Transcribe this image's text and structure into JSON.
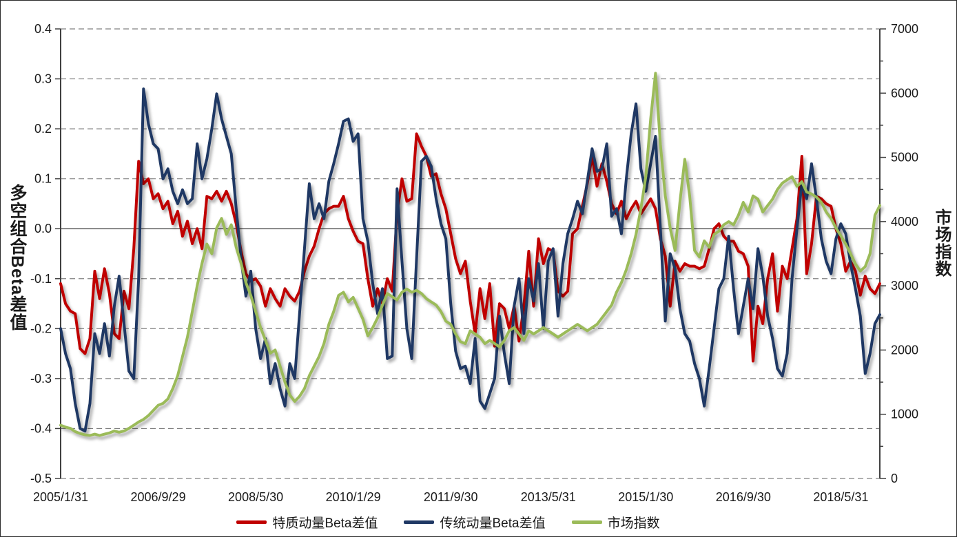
{
  "chart_data": {
    "type": "line",
    "title": "",
    "n_points": 169,
    "x_start": "2005/1",
    "x_tick_interval_months": 20,
    "x_tick_labels": [
      "2005/1/31",
      "2006/9/29",
      "2008/5/30",
      "2010/1/29",
      "2011/9/30",
      "2013/5/31",
      "2015/1/30",
      "2016/9/30",
      "2018/5/31"
    ],
    "left_axis": {
      "title": "多空组合Beta差值",
      "min": -0.5,
      "max": 0.4,
      "step": 0.1,
      "tick_labels": [
        "0.4",
        "0.3",
        "0.2",
        "0.1",
        "0.0",
        "-0.1",
        "-0.2",
        "-0.3",
        "-0.4",
        "-0.5"
      ]
    },
    "right_axis": {
      "title": "市场指数",
      "min": 0,
      "max": 7000,
      "step": 1000,
      "minor_tick_step": 500,
      "tick_labels": [
        "7000",
        "6000",
        "5000",
        "4000",
        "3000",
        "2000",
        "1000",
        "0"
      ]
    },
    "grid": {
      "horizontal": "dashed",
      "zero_line": "solid"
    },
    "legend_position": "bottom-center",
    "series": [
      {
        "name": "特质动量Beta差值",
        "color": "#C00000",
        "axis": "left",
        "values": [
          -0.11,
          -0.15,
          -0.165,
          -0.17,
          -0.24,
          -0.25,
          -0.22,
          -0.085,
          -0.14,
          -0.08,
          -0.13,
          -0.21,
          -0.22,
          -0.125,
          -0.16,
          -0.04,
          0.135,
          0.09,
          0.1,
          0.06,
          0.07,
          0.04,
          0.055,
          0.01,
          0.035,
          -0.015,
          0.015,
          -0.03,
          0.0,
          -0.04,
          0.065,
          0.06,
          0.075,
          0.055,
          0.075,
          0.05,
          0.01,
          -0.045,
          -0.09,
          -0.105,
          -0.1,
          -0.115,
          -0.155,
          -0.12,
          -0.14,
          -0.155,
          -0.12,
          -0.135,
          -0.145,
          -0.125,
          -0.085,
          -0.055,
          -0.035,
          0.0,
          0.03,
          0.04,
          0.045,
          0.045,
          0.065,
          0.02,
          -0.005,
          -0.025,
          -0.03,
          -0.1,
          -0.155,
          -0.12,
          -0.15,
          -0.1,
          -0.125,
          0.03,
          0.1,
          0.055,
          0.06,
          0.19,
          0.165,
          0.145,
          0.105,
          0.11,
          0.07,
          0.04,
          -0.01,
          -0.06,
          -0.09,
          -0.065,
          -0.145,
          -0.21,
          -0.12,
          -0.18,
          -0.11,
          -0.235,
          -0.15,
          -0.16,
          -0.2,
          -0.155,
          -0.225,
          -0.155,
          -0.045,
          -0.155,
          -0.02,
          -0.07,
          -0.04,
          -0.045,
          -0.125,
          -0.135,
          -0.125,
          -0.01,
          0.0,
          0.045,
          0.09,
          0.145,
          0.085,
          0.13,
          0.095,
          0.05,
          0.03,
          0.055,
          0.02,
          0.04,
          0.055,
          0.03,
          0.045,
          0.06,
          0.04,
          -0.02,
          -0.055,
          -0.155,
          -0.065,
          -0.085,
          -0.07,
          -0.075,
          -0.075,
          -0.08,
          -0.075,
          -0.04,
          0.0,
          0.01,
          -0.015,
          -0.025,
          -0.025,
          -0.045,
          -0.05,
          -0.075,
          -0.265,
          -0.155,
          -0.19,
          -0.1,
          -0.05,
          -0.165,
          -0.075,
          -0.1,
          -0.04,
          0.02,
          0.145,
          -0.09,
          -0.03,
          0.065,
          0.06,
          0.05,
          0.045,
          0.0,
          -0.03,
          -0.085,
          -0.065,
          -0.085,
          -0.133,
          -0.095,
          -0.12,
          -0.13,
          -0.11
        ]
      },
      {
        "name": "传统动量Beta差值",
        "color": "#1F3864",
        "axis": "left",
        "values": [
          -0.2,
          -0.25,
          -0.28,
          -0.35,
          -0.4,
          -0.405,
          -0.35,
          -0.21,
          -0.25,
          -0.19,
          -0.255,
          -0.155,
          -0.095,
          -0.19,
          -0.285,
          -0.3,
          -0.1,
          0.28,
          0.21,
          0.17,
          0.16,
          0.1,
          0.12,
          0.075,
          0.05,
          0.078,
          0.05,
          0.06,
          0.17,
          0.1,
          0.14,
          0.2,
          0.27,
          0.22,
          0.185,
          0.15,
          0.04,
          -0.06,
          -0.135,
          -0.085,
          -0.2,
          -0.26,
          -0.22,
          -0.31,
          -0.27,
          -0.32,
          -0.355,
          -0.27,
          -0.3,
          -0.17,
          -0.04,
          0.09,
          0.02,
          0.05,
          0.02,
          0.095,
          0.13,
          0.17,
          0.215,
          0.22,
          0.175,
          0.19,
          0.02,
          -0.025,
          -0.11,
          -0.17,
          -0.12,
          -0.26,
          -0.255,
          0.08,
          -0.065,
          -0.2,
          -0.26,
          -0.06,
          0.135,
          0.145,
          0.125,
          0.06,
          0.01,
          -0.02,
          -0.15,
          -0.245,
          -0.28,
          -0.275,
          -0.31,
          -0.22,
          -0.345,
          -0.36,
          -0.33,
          -0.3,
          -0.175,
          -0.25,
          -0.31,
          -0.155,
          -0.1,
          -0.21,
          -0.1,
          -0.145,
          -0.07,
          -0.2,
          -0.065,
          -0.04,
          -0.175,
          -0.07,
          -0.01,
          0.02,
          0.055,
          0.03,
          0.095,
          0.16,
          0.115,
          0.12,
          0.17,
          0.025,
          0.04,
          -0.01,
          0.1,
          0.19,
          0.25,
          0.12,
          0.075,
          0.13,
          0.185,
          0.0,
          -0.185,
          -0.05,
          -0.08,
          -0.16,
          -0.21,
          -0.225,
          -0.27,
          -0.3,
          -0.355,
          -0.28,
          -0.2,
          -0.12,
          -0.1,
          -0.015,
          -0.12,
          -0.21,
          -0.155,
          -0.1,
          -0.16,
          -0.04,
          -0.095,
          -0.175,
          -0.22,
          -0.28,
          -0.295,
          -0.25,
          -0.1,
          0.0,
          0.09,
          0.06,
          0.13,
          0.06,
          -0.02,
          -0.065,
          -0.09,
          -0.02,
          0.01,
          -0.01,
          -0.07,
          -0.12,
          -0.175,
          -0.29,
          -0.25,
          -0.19,
          -0.172
        ]
      },
      {
        "name": "市场指数",
        "color": "#9BBB59",
        "axis": "right",
        "values": [
          830,
          800,
          780,
          730,
          700,
          680,
          670,
          690,
          670,
          690,
          710,
          740,
          720,
          740,
          780,
          830,
          880,
          920,
          980,
          1060,
          1140,
          1170,
          1240,
          1400,
          1600,
          1900,
          2200,
          2600,
          3000,
          3350,
          3650,
          3500,
          3900,
          4050,
          3800,
          3950,
          3600,
          3350,
          3050,
          2850,
          2600,
          2350,
          2150,
          1950,
          2000,
          1750,
          1500,
          1300,
          1200,
          1280,
          1400,
          1600,
          1750,
          1900,
          2100,
          2400,
          2600,
          2850,
          2900,
          2750,
          2820,
          2650,
          2480,
          2220,
          2350,
          2500,
          2700,
          2880,
          2830,
          2780,
          2900,
          2950,
          2900,
          2930,
          2880,
          2800,
          2750,
          2700,
          2600,
          2450,
          2400,
          2250,
          2130,
          2100,
          2300,
          2250,
          2200,
          2100,
          2150,
          2100,
          2050,
          2150,
          2300,
          2350,
          2250,
          2150,
          2300,
          2250,
          2300,
          2350,
          2300,
          2250,
          2200,
          2250,
          2300,
          2350,
          2400,
          2350,
          2300,
          2350,
          2400,
          2500,
          2600,
          2700,
          2900,
          3050,
          3250,
          3500,
          3800,
          4200,
          4700,
          5600,
          6310,
          5200,
          4400,
          3900,
          3550,
          4300,
          4970,
          4400,
          3550,
          3450,
          3700,
          3600,
          3800,
          3850,
          3950,
          4000,
          3950,
          4100,
          4300,
          4150,
          4400,
          4350,
          4150,
          4250,
          4350,
          4500,
          4600,
          4650,
          4700,
          4550,
          4620,
          4460,
          4430,
          4380,
          4300,
          4150,
          4050,
          3900,
          3780,
          3650,
          3500,
          3340,
          3230,
          3300,
          3500,
          4100,
          4250
        ]
      }
    ]
  }
}
